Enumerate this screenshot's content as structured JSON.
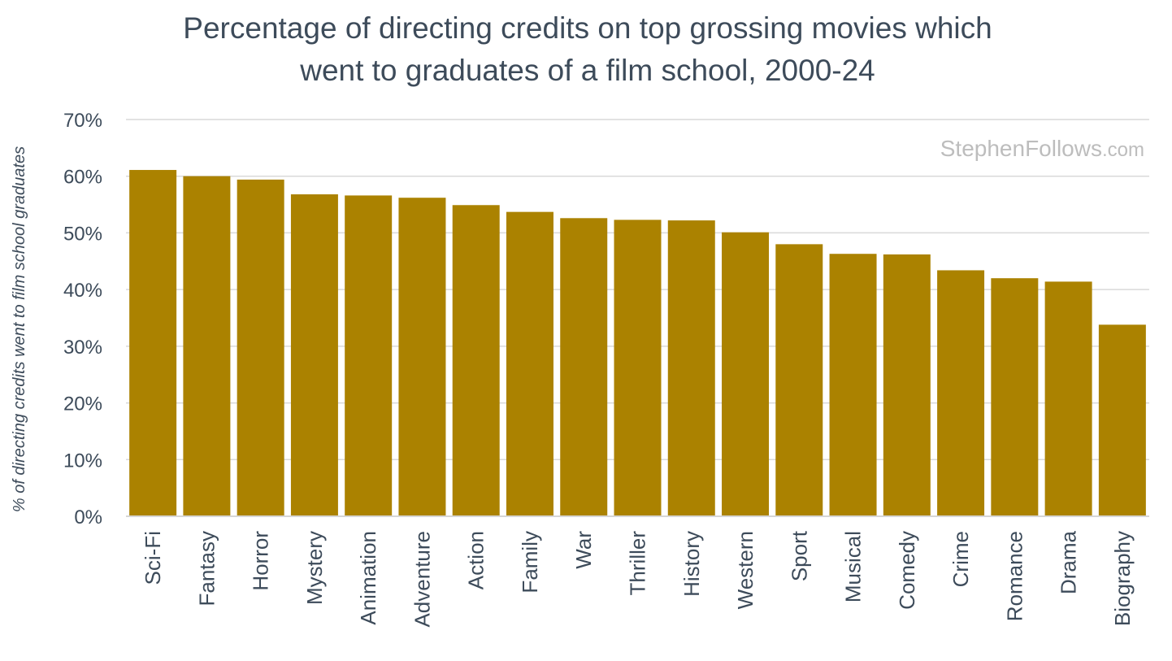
{
  "chart_data": {
    "type": "bar",
    "title_lines": [
      "Percentage of directing credits on top grossing movies which",
      "went to graduates of a film school, 2000-24"
    ],
    "ylabel": "% of directing credits went to film school graduates",
    "xlabel": "",
    "watermark": {
      "main": "StephenFollows",
      "suffix": ".com"
    },
    "categories": [
      "Sci-Fi",
      "Fantasy",
      "Horror",
      "Mystery",
      "Animation",
      "Adventure",
      "Action",
      "Family",
      "War",
      "Thriller",
      "History",
      "Western",
      "Sport",
      "Musical",
      "Comedy",
      "Crime",
      "Romance",
      "Drama",
      "Biography"
    ],
    "values": [
      61.1,
      60.0,
      59.4,
      56.8,
      56.6,
      56.2,
      54.9,
      53.7,
      52.6,
      52.3,
      52.2,
      50.1,
      48.0,
      46.3,
      46.2,
      43.4,
      42.0,
      41.4,
      33.8
    ],
    "ylim": [
      0,
      70
    ],
    "yticks": [
      0,
      10,
      20,
      30,
      40,
      50,
      60,
      70
    ],
    "ytick_labels": [
      "0%",
      "10%",
      "20%",
      "30%",
      "40%",
      "50%",
      "60%",
      "70%"
    ],
    "grid": true,
    "legend": "none",
    "bar_color": "#ab8200"
  }
}
